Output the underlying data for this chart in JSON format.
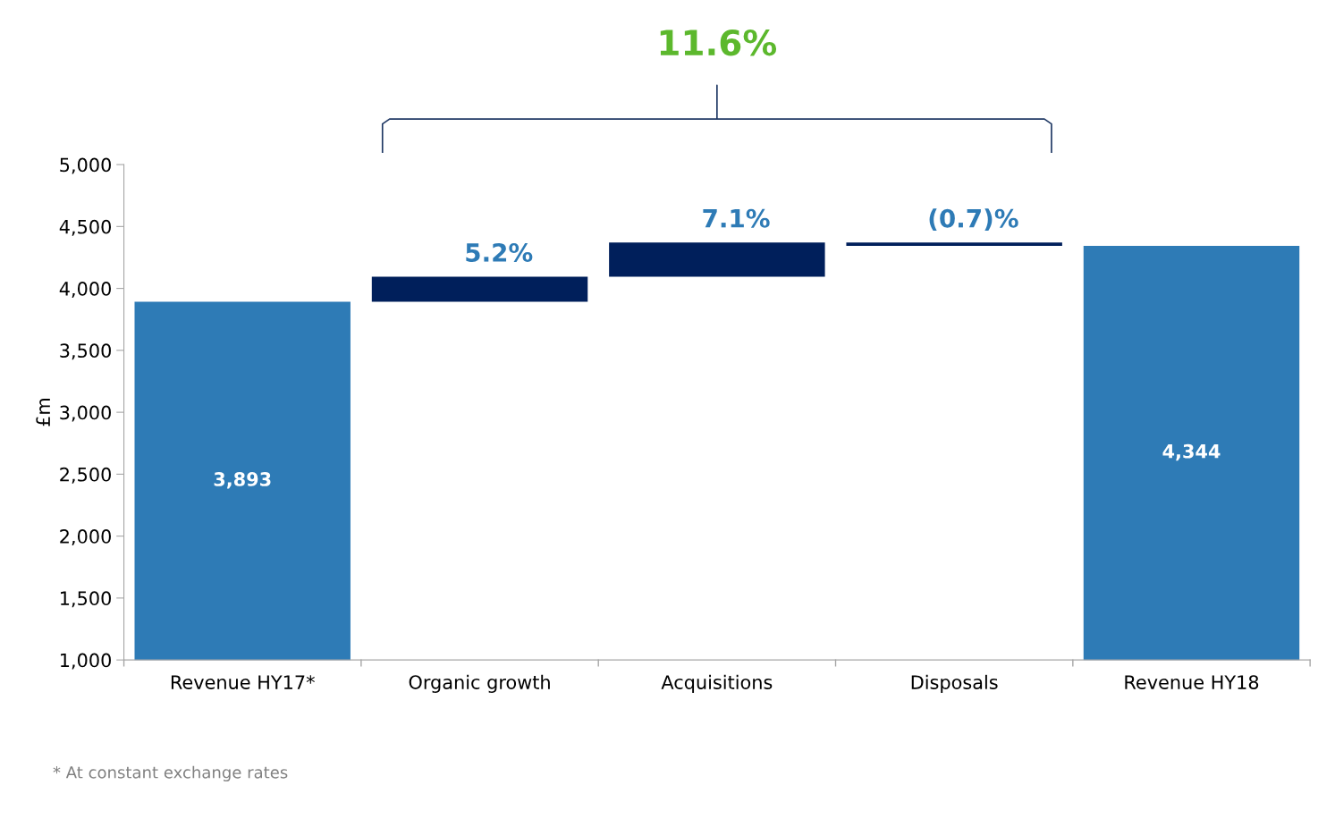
{
  "chart_data": {
    "type": "bar",
    "ylabel": "£m",
    "categories": [
      "Revenue HY17*",
      "Organic growth",
      "Acquisitions",
      "Disposals",
      "Revenue HY18"
    ],
    "values": [
      3893,
      202,
      276,
      -27,
      4344
    ],
    "base": [
      0,
      3893,
      4095,
      4371,
      0
    ],
    "colors": [
      "#2e7bb6",
      "#001f5b",
      "#001f5b",
      "#001f5b",
      "#2e7bb6"
    ],
    "value_labels": [
      "3,893",
      null,
      null,
      null,
      "4,344"
    ],
    "ylim": [
      1000,
      5000
    ],
    "yticks": [
      {
        "value": 1000,
        "label": "1,000"
      },
      {
        "value": 1500,
        "label": "1,500"
      },
      {
        "value": 2000,
        "label": "2,000"
      },
      {
        "value": 2500,
        "label": "2,500"
      },
      {
        "value": 3000,
        "label": "3,000"
      },
      {
        "value": 3500,
        "label": "3,500"
      },
      {
        "value": 4000,
        "label": "4,000"
      },
      {
        "value": 4500,
        "label": "4,500"
      },
      {
        "value": 5000,
        "label": "5,000"
      }
    ],
    "grid": false,
    "annotations": [
      "11.6%",
      "* At constant exchange rates",
      {
        "text": "5.2%",
        "x": "Organic growth",
        "y": 4095
      },
      {
        "text": "7.1%",
        "x": "Acquisitions",
        "y": 4371
      },
      {
        "text": "(0.7)%",
        "x": "Disposals",
        "y": 4371
      }
    ]
  }
}
